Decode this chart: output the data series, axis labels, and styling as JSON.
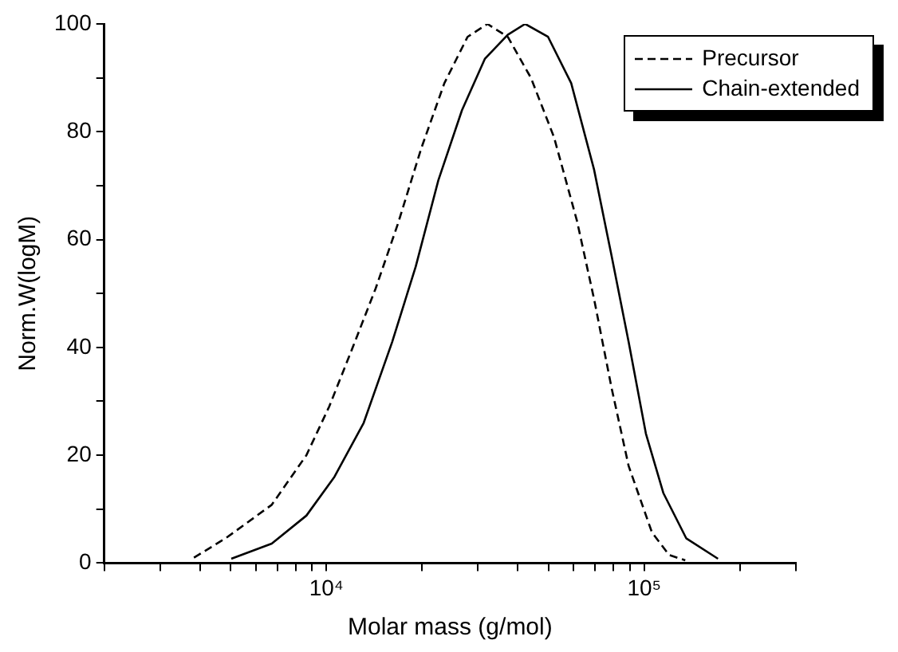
{
  "chart_data": {
    "type": "line",
    "xlabel": "Molar mass (g/mol)",
    "ylabel": "Norm.W(logM)",
    "log": "x",
    "xlim": [
      2000,
      300000
    ],
    "xticks": [
      {
        "value": 2000,
        "label": null
      },
      {
        "value": 3000,
        "label": null
      },
      {
        "value": 4000,
        "label": null
      },
      {
        "value": 5000,
        "label": null
      },
      {
        "value": 6000,
        "label": null
      },
      {
        "value": 7000,
        "label": null
      },
      {
        "value": 8000,
        "label": null
      },
      {
        "value": 9000,
        "label": null
      },
      {
        "value": 10000,
        "label": "10⁴"
      },
      {
        "value": 20000,
        "label": null
      },
      {
        "value": 30000,
        "label": null
      },
      {
        "value": 40000,
        "label": null
      },
      {
        "value": 50000,
        "label": null
      },
      {
        "value": 60000,
        "label": null
      },
      {
        "value": 70000,
        "label": null
      },
      {
        "value": 80000,
        "label": null
      },
      {
        "value": 90000,
        "label": null
      },
      {
        "value": 100000,
        "label": "10⁵"
      },
      {
        "value": 200000,
        "label": null
      },
      {
        "value": 300000,
        "label": null
      }
    ],
    "ylim": [
      0,
      100
    ],
    "yticks": [
      0,
      {
        "value": 10,
        "label": null
      },
      20,
      {
        "value": 30,
        "label": null
      },
      40,
      {
        "value": 50,
        "label": null
      },
      60,
      {
        "value": 70,
        "label": null
      },
      80,
      {
        "value": 90,
        "label": null
      },
      100
    ],
    "grid": false,
    "legend": "top right",
    "marker": "none",
    "series": [
      {
        "name": "Precursor",
        "color": "#000000",
        "line_style": "dashed",
        "x": [
          3830,
          4820,
          6730,
          8650,
          10200,
          12100,
          14300,
          16800,
          19900,
          23500,
          27800,
          32100,
          37200,
          44000,
          52000,
          61400,
          69500,
          78900,
          89300,
          105700,
          119700,
          134600
        ],
        "values": [
          1,
          4.6,
          10.8,
          20,
          29,
          40,
          51,
          63,
          77,
          89,
          97.6,
          100,
          97.6,
          90,
          79,
          63.5,
          49,
          32.5,
          18,
          5.7,
          1.5,
          0.5
        ]
      },
      {
        "name": "Chain-extended",
        "color": "#000000",
        "line_style": "solid",
        "x": [
          5020,
          6730,
          8650,
          10600,
          13100,
          16100,
          19100,
          22500,
          26700,
          31500,
          37200,
          42200,
          49800,
          58900,
          69500,
          78900,
          89300,
          101200,
          114800,
          135500,
          170600
        ],
        "values": [
          0.8,
          3.6,
          8.8,
          16,
          26,
          41,
          55,
          71,
          84,
          93.5,
          98,
          100,
          97.6,
          89,
          73,
          57,
          41,
          24,
          13,
          4.6,
          0.8
        ]
      }
    ]
  }
}
